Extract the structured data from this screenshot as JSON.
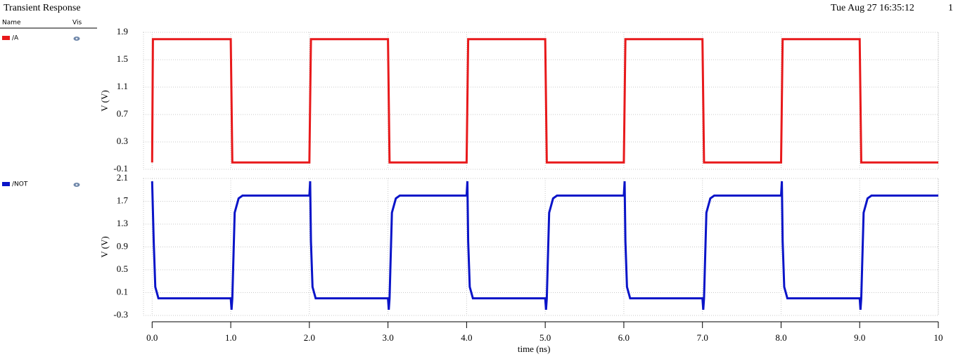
{
  "header": {
    "title": "Transient Response",
    "date": "Tue Aug 27 16:35:12",
    "page": "1"
  },
  "legend_header": {
    "name": "Name",
    "vis": "Vis"
  },
  "chart_data": [
    {
      "type": "line",
      "ylabel": "V (V)",
      "xlim": [
        -0.11,
        10
      ],
      "ylim": [
        -0.1,
        1.9
      ],
      "yticks": [
        1.9,
        1.5,
        1.1,
        0.7,
        0.3,
        -0.1
      ],
      "grid": true,
      "x": [
        0,
        0.01,
        1,
        1.02,
        2,
        2.02,
        3,
        3.02,
        4,
        4.02,
        5,
        5.02,
        6,
        6.02,
        7,
        7.02,
        8,
        8.02,
        9,
        9.02,
        10
      ],
      "series": [
        {
          "name": "/A",
          "color": "#e8191b",
          "values": [
            0,
            1.8,
            1.8,
            0,
            0,
            1.8,
            1.8,
            0,
            0,
            1.8,
            1.8,
            0,
            0,
            1.8,
            1.8,
            0,
            0,
            1.8,
            1.8,
            0,
            0
          ]
        }
      ]
    },
    {
      "type": "line",
      "ylabel": "V (V)",
      "xlabel": "time (ns)",
      "xlim": [
        -0.11,
        10
      ],
      "ylim": [
        -0.3,
        2.1
      ],
      "yticks": [
        2.1,
        1.7,
        1.3,
        0.9,
        0.5,
        0.1,
        -0.3
      ],
      "grid": true,
      "xticks": [
        {
          "value": 0,
          "label": "0.0"
        },
        {
          "value": 1,
          "label": "1.0"
        },
        {
          "value": 2,
          "label": "2.0"
        },
        {
          "value": 3,
          "label": "3.0"
        },
        {
          "value": 4,
          "label": "4.0"
        },
        {
          "value": 5,
          "label": "5.0"
        },
        {
          "value": 6,
          "label": "6.0"
        },
        {
          "value": 7,
          "label": "7.0"
        },
        {
          "value": 8,
          "label": "8.0"
        },
        {
          "value": 9,
          "label": "9.0"
        },
        10
      ],
      "x": [
        0,
        0.02,
        0.04,
        0.08,
        1,
        1.01,
        1.02,
        1.05,
        1.1,
        1.15,
        2,
        2.01,
        2.02,
        2.04,
        2.08,
        3,
        3.01,
        3.02,
        3.05,
        3.1,
        3.15,
        4,
        4.01,
        4.02,
        4.04,
        4.08,
        5,
        5.01,
        5.02,
        5.05,
        5.1,
        5.15,
        6,
        6.01,
        6.02,
        6.04,
        6.08,
        7,
        7.01,
        7.02,
        7.05,
        7.1,
        7.15,
        8,
        8.01,
        8.02,
        8.04,
        8.08,
        9,
        9.01,
        9.02,
        9.05,
        9.1,
        9.15,
        10
      ],
      "series": [
        {
          "name": "/NOT",
          "color": "#0a14c8",
          "values": [
            2.05,
            1.0,
            0.2,
            0,
            0,
            -0.2,
            0,
            1.5,
            1.75,
            1.8,
            1.8,
            2.05,
            1.0,
            0.2,
            0,
            0,
            -0.2,
            0,
            1.5,
            1.75,
            1.8,
            1.8,
            2.05,
            1.0,
            0.2,
            0,
            0,
            -0.2,
            0,
            1.5,
            1.75,
            1.8,
            1.8,
            2.05,
            1.0,
            0.2,
            0,
            0,
            -0.2,
            0,
            1.5,
            1.75,
            1.8,
            1.8,
            2.05,
            1.0,
            0.2,
            0,
            0,
            -0.2,
            0,
            1.5,
            1.75,
            1.8,
            1.8
          ]
        }
      ]
    }
  ]
}
